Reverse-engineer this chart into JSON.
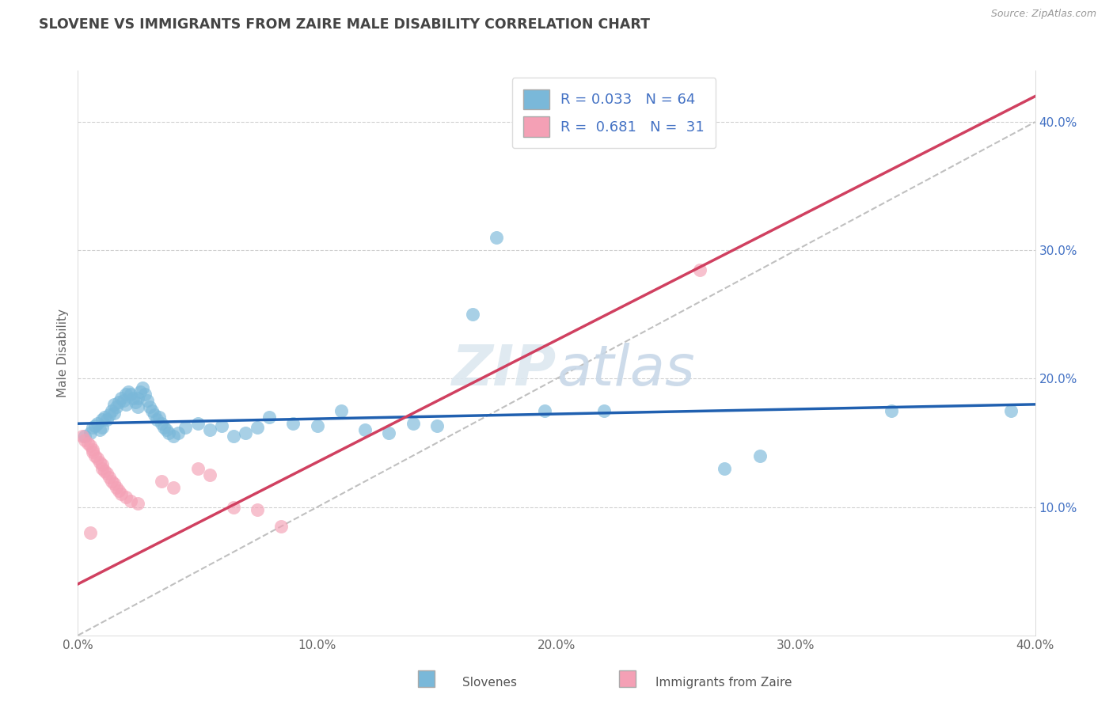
{
  "title": "SLOVENE VS IMMIGRANTS FROM ZAIRE MALE DISABILITY CORRELATION CHART",
  "source": "Source: ZipAtlas.com",
  "ylabel": "Male Disability",
  "xlim": [
    0.0,
    0.4
  ],
  "ylim": [
    0.0,
    0.44
  ],
  "x_ticks": [
    0.0,
    0.1,
    0.2,
    0.3,
    0.4
  ],
  "x_tick_labels": [
    "0.0%",
    "10.0%",
    "20.0%",
    "30.0%",
    "40.0%"
  ],
  "y_ticks": [
    0.1,
    0.2,
    0.3,
    0.4
  ],
  "y_tick_labels": [
    "10.0%",
    "20.0%",
    "30.0%",
    "40.0%"
  ],
  "blue_color": "#7ab8d9",
  "pink_color": "#f4a0b5",
  "trend_blue": "#2060b0",
  "trend_pink": "#d04060",
  "trend_dashed": "#c0c0c0",
  "R_blue": 0.033,
  "N_blue": 64,
  "R_pink": 0.681,
  "N_pink": 31,
  "blue_points": [
    [
      0.003,
      0.155
    ],
    [
      0.005,
      0.158
    ],
    [
      0.006,
      0.162
    ],
    [
      0.007,
      0.163
    ],
    [
      0.008,
      0.165
    ],
    [
      0.009,
      0.16
    ],
    [
      0.01,
      0.162
    ],
    [
      0.01,
      0.168
    ],
    [
      0.011,
      0.17
    ],
    [
      0.012,
      0.168
    ],
    [
      0.013,
      0.172
    ],
    [
      0.014,
      0.175
    ],
    [
      0.015,
      0.173
    ],
    [
      0.015,
      0.18
    ],
    [
      0.016,
      0.178
    ],
    [
      0.017,
      0.182
    ],
    [
      0.018,
      0.185
    ],
    [
      0.019,
      0.183
    ],
    [
      0.02,
      0.18
    ],
    [
      0.02,
      0.188
    ],
    [
      0.021,
      0.19
    ],
    [
      0.022,
      0.188
    ],
    [
      0.023,
      0.185
    ],
    [
      0.024,
      0.182
    ],
    [
      0.025,
      0.178
    ],
    [
      0.025,
      0.185
    ],
    [
      0.026,
      0.19
    ],
    [
      0.027,
      0.193
    ],
    [
      0.028,
      0.188
    ],
    [
      0.029,
      0.183
    ],
    [
      0.03,
      0.178
    ],
    [
      0.031,
      0.175
    ],
    [
      0.032,
      0.172
    ],
    [
      0.033,
      0.168
    ],
    [
      0.034,
      0.17
    ],
    [
      0.035,
      0.165
    ],
    [
      0.036,
      0.162
    ],
    [
      0.037,
      0.16
    ],
    [
      0.038,
      0.158
    ],
    [
      0.04,
      0.155
    ],
    [
      0.042,
      0.158
    ],
    [
      0.045,
      0.162
    ],
    [
      0.05,
      0.165
    ],
    [
      0.055,
      0.16
    ],
    [
      0.06,
      0.163
    ],
    [
      0.065,
      0.155
    ],
    [
      0.07,
      0.158
    ],
    [
      0.075,
      0.162
    ],
    [
      0.08,
      0.17
    ],
    [
      0.09,
      0.165
    ],
    [
      0.1,
      0.163
    ],
    [
      0.11,
      0.175
    ],
    [
      0.12,
      0.16
    ],
    [
      0.13,
      0.158
    ],
    [
      0.14,
      0.165
    ],
    [
      0.15,
      0.163
    ],
    [
      0.165,
      0.25
    ],
    [
      0.175,
      0.31
    ],
    [
      0.195,
      0.175
    ],
    [
      0.22,
      0.175
    ],
    [
      0.27,
      0.13
    ],
    [
      0.285,
      0.14
    ],
    [
      0.34,
      0.175
    ],
    [
      0.39,
      0.175
    ]
  ],
  "pink_points": [
    [
      0.002,
      0.155
    ],
    [
      0.003,
      0.152
    ],
    [
      0.004,
      0.15
    ],
    [
      0.005,
      0.148
    ],
    [
      0.006,
      0.145
    ],
    [
      0.006,
      0.143
    ],
    [
      0.007,
      0.14
    ],
    [
      0.008,
      0.138
    ],
    [
      0.009,
      0.135
    ],
    [
      0.01,
      0.133
    ],
    [
      0.01,
      0.13
    ],
    [
      0.011,
      0.128
    ],
    [
      0.012,
      0.126
    ],
    [
      0.013,
      0.123
    ],
    [
      0.014,
      0.12
    ],
    [
      0.015,
      0.118
    ],
    [
      0.016,
      0.115
    ],
    [
      0.017,
      0.113
    ],
    [
      0.018,
      0.11
    ],
    [
      0.02,
      0.108
    ],
    [
      0.022,
      0.105
    ],
    [
      0.025,
      0.103
    ],
    [
      0.035,
      0.12
    ],
    [
      0.04,
      0.115
    ],
    [
      0.05,
      0.13
    ],
    [
      0.055,
      0.125
    ],
    [
      0.065,
      0.1
    ],
    [
      0.075,
      0.098
    ],
    [
      0.085,
      0.085
    ],
    [
      0.26,
      0.285
    ],
    [
      0.005,
      0.08
    ]
  ]
}
